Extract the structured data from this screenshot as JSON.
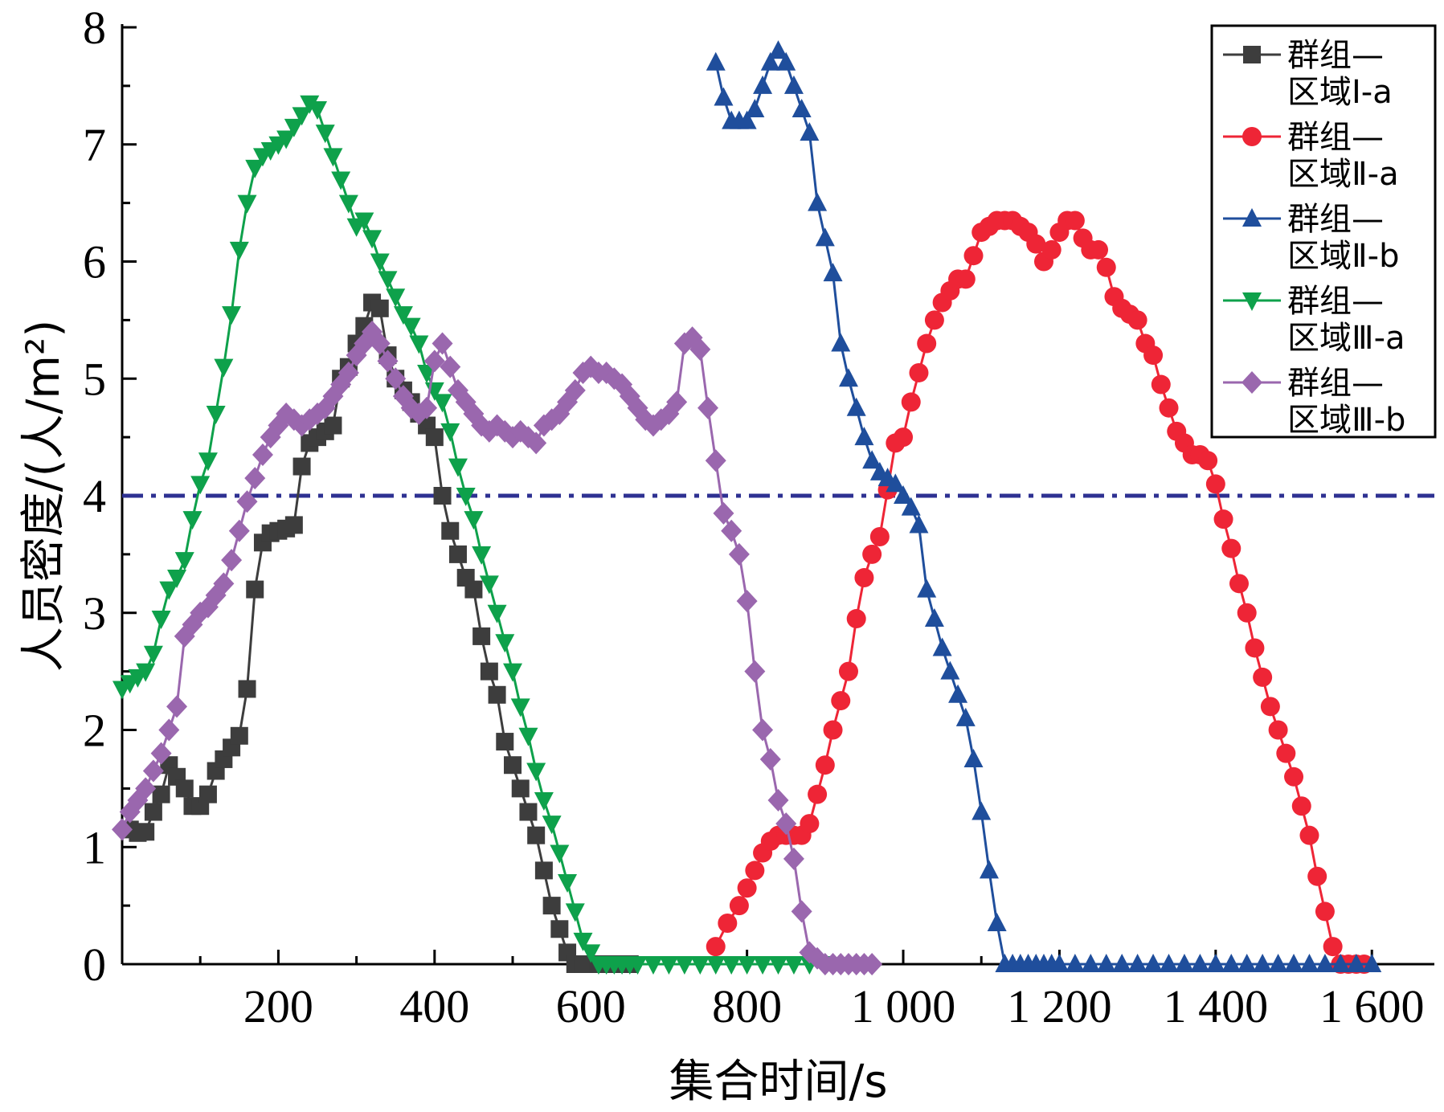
{
  "chart_data": {
    "type": "line",
    "title": "",
    "xlabel": "集合时间/s",
    "ylabel": "人员密度/(人/m²)",
    "xlim": [
      0,
      1680
    ],
    "ylim": [
      0,
      8
    ],
    "xticks": [
      200,
      400,
      600,
      800,
      1000,
      1200,
      1400,
      1600
    ],
    "xtick_labels": [
      "200",
      "400",
      "600",
      "800",
      "1 000",
      "1 200",
      "1 400",
      "1 600"
    ],
    "yticks": [
      0,
      1,
      2,
      3,
      4,
      5,
      6,
      7,
      8
    ],
    "ytick_labels": [
      "0",
      "1",
      "2",
      "3",
      "4",
      "5",
      "6",
      "7",
      "8"
    ],
    "reference_line": {
      "y": 4,
      "style": "dash-dot",
      "color": "#2e3192"
    },
    "grid": false,
    "legend_position": "top-right",
    "series": [
      {
        "name": "群组—区域Ⅰ-a",
        "legend_lines": [
          "群组—",
          "区域Ⅰ-a"
        ],
        "color": "#3d3d3d",
        "marker": "square",
        "x": [
          10,
          20,
          30,
          40,
          50,
          60,
          70,
          80,
          90,
          100,
          110,
          120,
          130,
          140,
          150,
          160,
          170,
          180,
          190,
          200,
          210,
          220,
          230,
          240,
          250,
          260,
          270,
          280,
          290,
          300,
          310,
          320,
          330,
          340,
          350,
          360,
          370,
          380,
          390,
          400,
          410,
          420,
          430,
          440,
          450,
          460,
          470,
          480,
          490,
          500,
          510,
          520,
          530,
          540,
          550,
          560,
          570,
          580,
          590,
          600,
          610,
          620,
          630,
          640,
          650
        ],
        "values": [
          1.15,
          1.12,
          1.13,
          1.3,
          1.45,
          1.7,
          1.6,
          1.5,
          1.35,
          1.35,
          1.45,
          1.65,
          1.75,
          1.85,
          1.95,
          2.35,
          3.2,
          3.6,
          3.68,
          3.7,
          3.72,
          3.75,
          4.25,
          4.45,
          4.5,
          4.55,
          4.6,
          5.0,
          5.1,
          5.3,
          5.45,
          5.65,
          5.6,
          5.2,
          5.0,
          4.9,
          4.8,
          4.7,
          4.6,
          4.5,
          4.0,
          3.7,
          3.5,
          3.3,
          3.2,
          2.8,
          2.5,
          2.3,
          1.9,
          1.7,
          1.5,
          1.3,
          1.1,
          0.8,
          0.5,
          0.3,
          0.1,
          0.0,
          0.0,
          0.0,
          0.0,
          0.0,
          0.0,
          0.0,
          0.0
        ]
      },
      {
        "name": "群组—区域Ⅱ-a",
        "legend_lines": [
          "群组—",
          "区域Ⅱ-a"
        ],
        "color": "#ee2536",
        "marker": "circle",
        "x": [
          760,
          775,
          790,
          800,
          810,
          820,
          830,
          840,
          850,
          860,
          870,
          880,
          890,
          900,
          910,
          920,
          930,
          940,
          950,
          960,
          970,
          980,
          990,
          1000,
          1010,
          1020,
          1030,
          1040,
          1050,
          1060,
          1070,
          1080,
          1090,
          1100,
          1110,
          1120,
          1130,
          1140,
          1150,
          1160,
          1170,
          1180,
          1190,
          1200,
          1210,
          1220,
          1230,
          1240,
          1250,
          1260,
          1270,
          1280,
          1290,
          1300,
          1310,
          1320,
          1330,
          1340,
          1350,
          1360,
          1370,
          1380,
          1390,
          1400,
          1410,
          1420,
          1430,
          1440,
          1450,
          1460,
          1470,
          1480,
          1490,
          1500,
          1510,
          1520,
          1530,
          1540,
          1550,
          1560,
          1570,
          1580,
          1590
        ],
        "values": [
          0.15,
          0.35,
          0.5,
          0.65,
          0.8,
          0.95,
          1.05,
          1.1,
          1.1,
          1.1,
          1.1,
          1.2,
          1.45,
          1.7,
          2.0,
          2.25,
          2.5,
          2.95,
          3.3,
          3.5,
          3.65,
          4.05,
          4.45,
          4.5,
          4.8,
          5.05,
          5.3,
          5.5,
          5.65,
          5.75,
          5.85,
          5.85,
          6.05,
          6.25,
          6.3,
          6.35,
          6.35,
          6.35,
          6.3,
          6.25,
          6.15,
          6.0,
          6.1,
          6.25,
          6.35,
          6.35,
          6.2,
          6.1,
          6.1,
          5.95,
          5.7,
          5.6,
          5.55,
          5.5,
          5.3,
          5.2,
          4.95,
          4.75,
          4.55,
          4.45,
          4.35,
          4.35,
          4.3,
          4.1,
          3.8,
          3.55,
          3.25,
          3.0,
          2.7,
          2.45,
          2.2,
          2.0,
          1.8,
          1.6,
          1.35,
          1.1,
          0.75,
          0.45,
          0.15,
          0.0,
          0.0,
          0.0,
          0.0
        ]
      },
      {
        "name": "群组—区域Ⅱ-b",
        "legend_lines": [
          "群组—",
          "区域Ⅱ-b"
        ],
        "color": "#1f4e9c",
        "marker": "triangle-up",
        "x": [
          760,
          770,
          780,
          790,
          800,
          810,
          820,
          830,
          840,
          850,
          860,
          870,
          880,
          890,
          900,
          910,
          920,
          930,
          940,
          950,
          960,
          970,
          980,
          990,
          1000,
          1010,
          1020,
          1030,
          1040,
          1050,
          1060,
          1070,
          1080,
          1090,
          1100,
          1110,
          1120,
          1130,
          1140,
          1150,
          1160,
          1170,
          1180,
          1190,
          1200,
          1220,
          1240,
          1260,
          1280,
          1300,
          1320,
          1340,
          1360,
          1380,
          1400,
          1420,
          1440,
          1460,
          1480,
          1500,
          1520,
          1540,
          1560,
          1580,
          1600
        ],
        "values": [
          7.7,
          7.4,
          7.2,
          7.2,
          7.2,
          7.3,
          7.5,
          7.7,
          7.8,
          7.7,
          7.5,
          7.3,
          7.1,
          6.5,
          6.2,
          5.9,
          5.3,
          5.0,
          4.75,
          4.5,
          4.3,
          4.2,
          4.15,
          4.1,
          4.0,
          3.9,
          3.75,
          3.2,
          2.95,
          2.7,
          2.5,
          2.3,
          2.1,
          1.75,
          1.3,
          0.8,
          0.35,
          0.0,
          0.0,
          0.0,
          0.0,
          0.0,
          0.0,
          0.0,
          0.0,
          0.0,
          0.0,
          0.0,
          0.0,
          0.0,
          0.0,
          0.0,
          0.0,
          0.0,
          0.0,
          0.0,
          0.0,
          0.0,
          0.0,
          0.0,
          0.0,
          0.0,
          0.0,
          0.0,
          0.0
        ]
      },
      {
        "name": "群组—区域Ⅲ-a",
        "legend_lines": [
          "群组—",
          "区域Ⅲ-a"
        ],
        "color": "#0ea14b",
        "marker": "triangle-down",
        "x": [
          0,
          10,
          20,
          30,
          40,
          50,
          60,
          70,
          80,
          90,
          100,
          110,
          120,
          130,
          140,
          150,
          160,
          170,
          180,
          190,
          200,
          210,
          220,
          230,
          240,
          250,
          260,
          270,
          280,
          290,
          300,
          310,
          320,
          330,
          340,
          350,
          360,
          370,
          380,
          390,
          400,
          410,
          420,
          430,
          440,
          450,
          460,
          470,
          480,
          490,
          500,
          510,
          520,
          530,
          540,
          550,
          560,
          570,
          580,
          590,
          600,
          610,
          620,
          630,
          640,
          650,
          660,
          680,
          700,
          720,
          740,
          760,
          780,
          800,
          820,
          840,
          860,
          880,
          900
        ],
        "values": [
          2.35,
          2.4,
          2.45,
          2.5,
          2.65,
          2.95,
          3.2,
          3.3,
          3.45,
          3.8,
          4.1,
          4.3,
          4.7,
          5.1,
          5.55,
          6.1,
          6.5,
          6.8,
          6.9,
          6.95,
          7.0,
          7.05,
          7.15,
          7.25,
          7.35,
          7.3,
          7.1,
          6.9,
          6.7,
          6.5,
          6.3,
          6.35,
          6.2,
          6.0,
          5.85,
          5.7,
          5.55,
          5.45,
          5.3,
          5.05,
          4.9,
          4.8,
          4.55,
          4.25,
          4.0,
          3.8,
          3.5,
          3.25,
          3.0,
          2.75,
          2.5,
          2.2,
          1.95,
          1.65,
          1.4,
          1.2,
          0.95,
          0.7,
          0.45,
          0.2,
          0.1,
          0.0,
          0.0,
          0.0,
          0.0,
          0.0,
          0.0,
          0.0,
          0.0,
          0.0,
          0.0,
          0.0,
          0.0,
          0.0,
          0.0,
          0.0,
          0.0,
          0.0,
          0.0
        ]
      },
      {
        "name": "群组—区域Ⅲ-b",
        "legend_lines": [
          "群组—",
          "区域Ⅲ-b"
        ],
        "color": "#9a67ae",
        "marker": "diamond",
        "x": [
          0,
          10,
          20,
          30,
          40,
          50,
          60,
          70,
          80,
          90,
          100,
          110,
          120,
          130,
          140,
          150,
          160,
          170,
          180,
          190,
          200,
          210,
          220,
          230,
          240,
          250,
          260,
          270,
          280,
          290,
          300,
          310,
          320,
          330,
          340,
          350,
          360,
          370,
          380,
          390,
          400,
          410,
          420,
          430,
          440,
          450,
          460,
          470,
          480,
          490,
          500,
          510,
          520,
          530,
          540,
          550,
          560,
          570,
          580,
          590,
          600,
          610,
          620,
          630,
          640,
          650,
          660,
          670,
          680,
          690,
          700,
          710,
          720,
          730,
          740,
          750,
          760,
          770,
          780,
          790,
          800,
          810,
          820,
          830,
          840,
          850,
          860,
          870,
          880,
          890,
          900,
          910,
          920,
          930,
          940,
          950,
          960
        ],
        "values": [
          1.15,
          1.3,
          1.4,
          1.5,
          1.65,
          1.8,
          2.0,
          2.2,
          2.8,
          2.9,
          3.0,
          3.05,
          3.15,
          3.25,
          3.45,
          3.7,
          3.95,
          4.15,
          4.35,
          4.5,
          4.6,
          4.7,
          4.65,
          4.6,
          4.65,
          4.7,
          4.75,
          4.85,
          4.95,
          5.05,
          5.2,
          5.3,
          5.4,
          5.3,
          5.15,
          5.0,
          4.85,
          4.75,
          4.7,
          4.75,
          5.15,
          5.3,
          5.1,
          4.9,
          4.8,
          4.7,
          4.6,
          4.55,
          4.6,
          4.55,
          4.5,
          4.55,
          4.5,
          4.45,
          4.6,
          4.65,
          4.7,
          4.8,
          4.9,
          5.05,
          5.1,
          5.05,
          5.05,
          5.0,
          4.95,
          4.85,
          4.75,
          4.65,
          4.6,
          4.65,
          4.7,
          4.8,
          5.3,
          5.35,
          5.25,
          4.75,
          4.3,
          3.85,
          3.7,
          3.5,
          3.1,
          2.5,
          2.0,
          1.75,
          1.4,
          1.2,
          0.9,
          0.45,
          0.1,
          0.05,
          0.0,
          0.0,
          0.0,
          0.0,
          0.0,
          0.0,
          0.0
        ]
      }
    ]
  }
}
